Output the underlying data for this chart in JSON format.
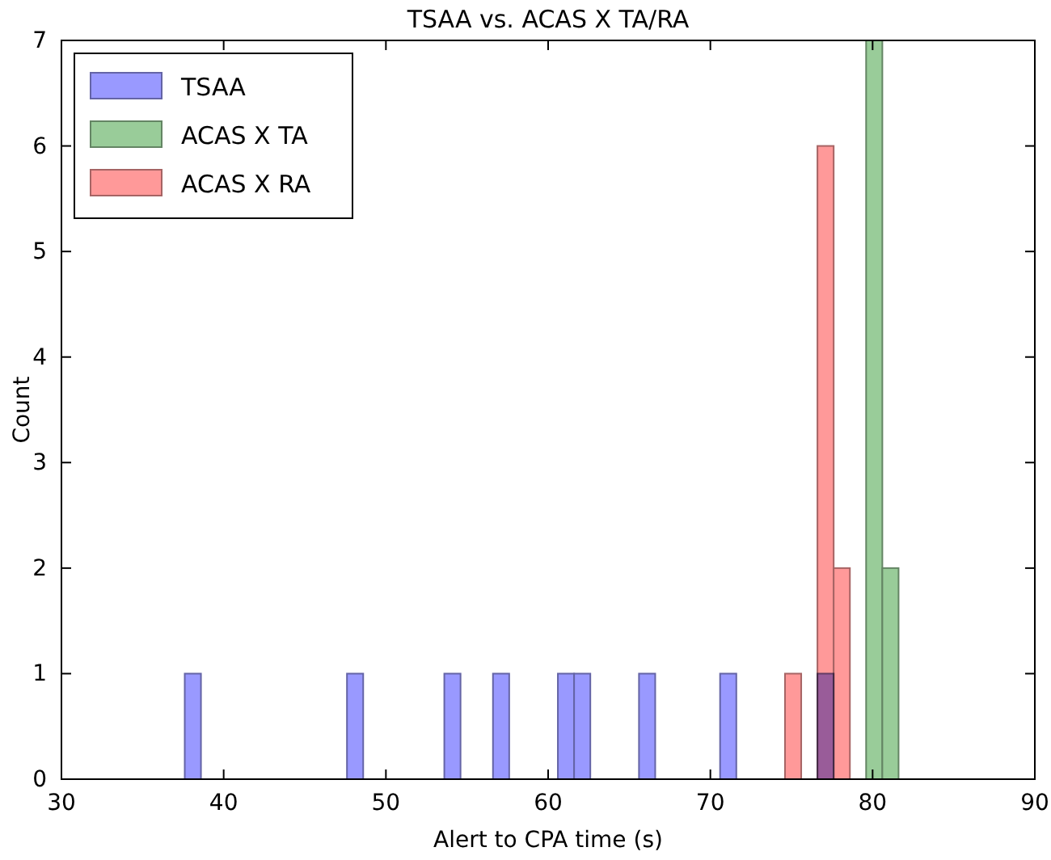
{
  "chart_data": {
    "type": "histogram",
    "title": "TSAA vs. ACAS X TA/RA",
    "xlabel": "Alert to CPA time (s)",
    "ylabel": "Count",
    "bins": [
      37.6,
      38.6,
      39.6,
      40.6,
      41.6,
      42.6,
      43.6,
      44.6,
      45.6,
      46.6,
      47.6,
      48.6,
      49.6,
      50.6,
      51.6,
      52.6,
      53.6,
      54.6,
      55.6,
      56.6,
      57.6,
      58.6,
      59.6,
      60.6,
      61.6,
      62.6,
      63.6,
      64.6,
      65.6,
      66.6,
      67.6,
      68.6,
      69.6,
      70.6,
      71.6,
      72.6,
      73.6,
      74.6,
      75.6,
      76.6,
      77.6,
      78.6,
      79.6,
      80.6,
      81.6
    ],
    "series": [
      {
        "name": "TSAA",
        "color": "#9999ff",
        "values": [
          1,
          0,
          0,
          0,
          0,
          0,
          0,
          0,
          0,
          0,
          1,
          0,
          0,
          0,
          0,
          0,
          1,
          0,
          0,
          1,
          0,
          0,
          0,
          1,
          1,
          0,
          0,
          0,
          1,
          0,
          0,
          0,
          0,
          1,
          0,
          0,
          0,
          0,
          0,
          1,
          0,
          0,
          0,
          0
        ]
      },
      {
        "name": "ACAS X TA",
        "color": "#99cc99",
        "values": [
          0,
          0,
          0,
          0,
          0,
          0,
          0,
          0,
          0,
          0,
          0,
          0,
          0,
          0,
          0,
          0,
          0,
          0,
          0,
          0,
          0,
          0,
          0,
          0,
          0,
          0,
          0,
          0,
          0,
          0,
          0,
          0,
          0,
          0,
          0,
          0,
          0,
          0,
          0,
          0,
          0,
          0,
          7,
          2
        ]
      },
      {
        "name": "ACAS X RA",
        "color": "#ff9999",
        "values": [
          0,
          0,
          0,
          0,
          0,
          0,
          0,
          0,
          0,
          0,
          0,
          0,
          0,
          0,
          0,
          0,
          0,
          0,
          0,
          0,
          0,
          0,
          0,
          0,
          0,
          0,
          0,
          0,
          0,
          0,
          0,
          0,
          0,
          0,
          0,
          0,
          0,
          1,
          0,
          6,
          2,
          0,
          0,
          0
        ]
      }
    ],
    "xlim": [
      30,
      90
    ],
    "xticks": [
      30,
      40,
      50,
      60,
      70,
      80,
      90
    ],
    "ylim": [
      0,
      7
    ],
    "yticks": [
      0,
      1,
      2,
      3,
      4,
      5,
      6,
      7
    ],
    "legend": "top left",
    "grid": false
  }
}
